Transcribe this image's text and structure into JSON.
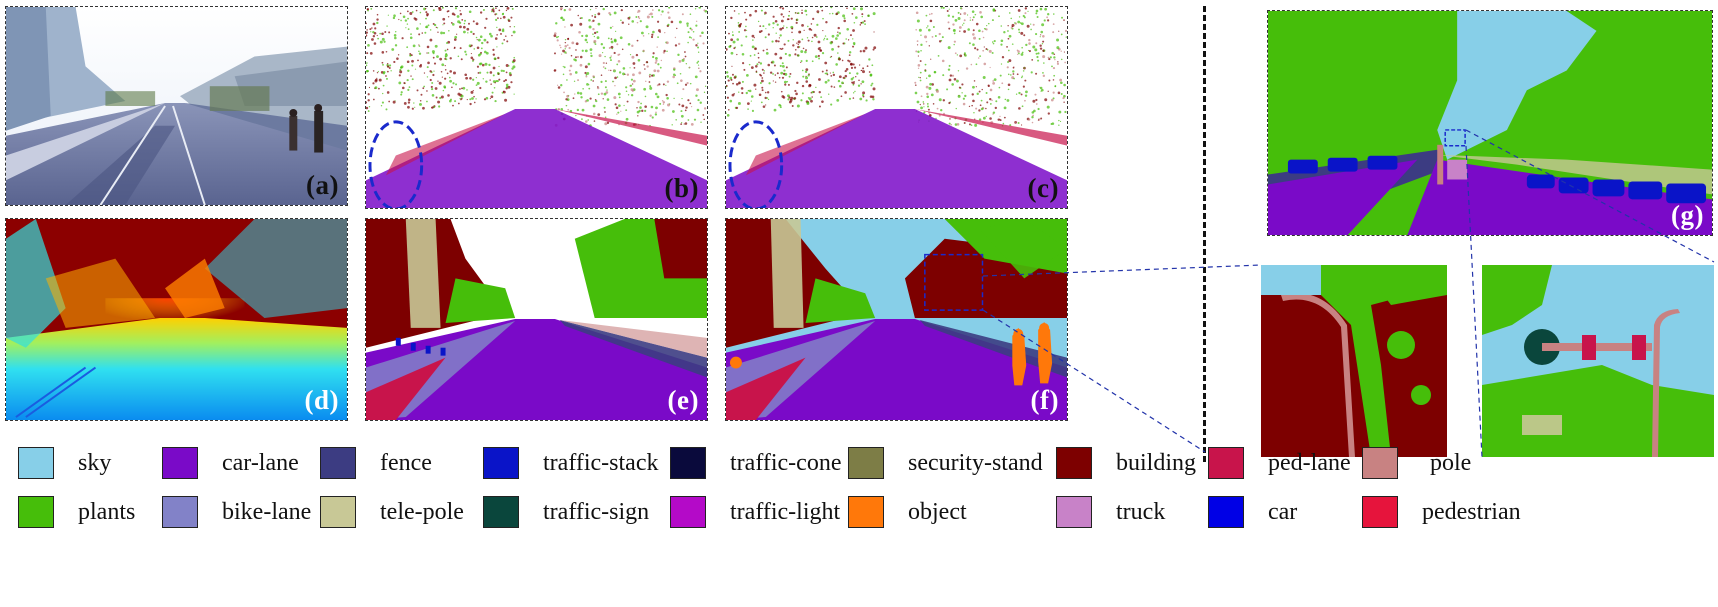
{
  "panels": {
    "a": {
      "label": "(a)"
    },
    "b": {
      "label": "(b)"
    },
    "c": {
      "label": "(c)"
    },
    "d": {
      "label": "(d)"
    },
    "e": {
      "label": "(e)"
    },
    "f": {
      "label": "(f)"
    },
    "g": {
      "label": "(g)"
    }
  },
  "legend": [
    {
      "label": "sky",
      "color": "#87cfe8"
    },
    {
      "label": "car-lane",
      "color": "#7a0ac8"
    },
    {
      "label": "fence",
      "color": "#3c3c82"
    },
    {
      "label": "traffic-stack",
      "color": "#0a14c8"
    },
    {
      "label": "traffic-cone",
      "color": "#0a0a3c"
    },
    {
      "label": "security-stand",
      "color": "#7d7d46"
    },
    {
      "label": "building",
      "color": "#7d0000"
    },
    {
      "label": "ped-lane",
      "color": "#c8144b"
    },
    {
      "label": "pole",
      "color": "#c88282"
    },
    {
      "label": "plants",
      "color": "#46be0a"
    },
    {
      "label": "bike-lane",
      "color": "#8282c8"
    },
    {
      "label": "tele-pole",
      "color": "#c8c896"
    },
    {
      "label": "traffic-sign",
      "color": "#0a463c"
    },
    {
      "label": "traffic-light",
      "color": "#b40ac8"
    },
    {
      "label": "object",
      "color": "#ff780a"
    },
    {
      "label": "truck",
      "color": "#c882c8"
    },
    {
      "label": "car",
      "color": "#0000e6"
    },
    {
      "label": "pedestrian",
      "color": "#e6143c"
    }
  ]
}
